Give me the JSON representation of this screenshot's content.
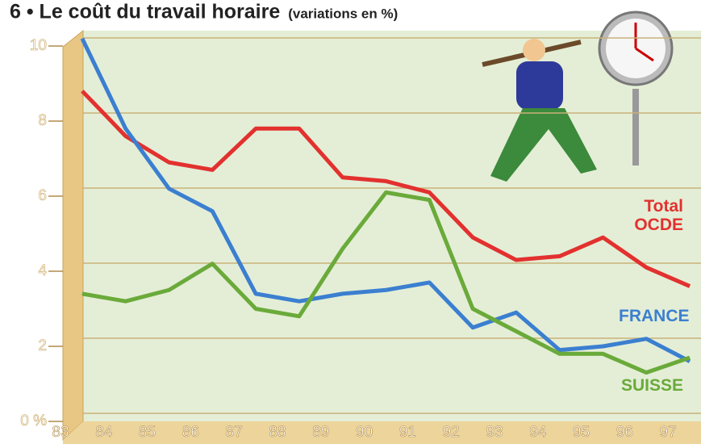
{
  "chart_data": {
    "type": "line",
    "title": "6 • Le coût du travail horaire",
    "subtitle": "(variations en %)",
    "x": [
      83.5,
      84.5,
      85.5,
      86.5,
      87.5,
      88.5,
      89.5,
      90.5,
      91.5,
      92.5,
      93.5,
      94.5,
      95.5,
      96.5,
      97.5
    ],
    "series": [
      {
        "name": "Total OCDE",
        "color": "#e2312f",
        "values": [
          8.8,
          7.6,
          6.9,
          6.7,
          7.8,
          7.8,
          6.5,
          6.4,
          6.1,
          4.9,
          4.3,
          4.4,
          4.9,
          4.1,
          3.6
        ]
      },
      {
        "name": "FRANCE",
        "color": "#3b7fd0",
        "values": [
          10.2,
          7.8,
          6.2,
          5.6,
          3.4,
          3.2,
          3.4,
          3.5,
          3.7,
          2.5,
          2.9,
          1.9,
          2.0,
          2.2,
          1.6
        ]
      },
      {
        "name": "SUISSE",
        "color": "#6aaa3a",
        "values": [
          3.4,
          3.2,
          3.5,
          4.2,
          3.0,
          2.8,
          4.6,
          6.1,
          5.9,
          3.0,
          2.4,
          1.8,
          1.8,
          1.3,
          1.7
        ]
      }
    ],
    "xlim": [
      82.8,
      97.75
    ],
    "xticks": [
      83,
      84,
      85,
      86,
      87,
      88,
      89,
      90,
      91,
      92,
      93,
      94,
      95,
      96,
      97
    ],
    "ylim": [
      0,
      10
    ],
    "yticks": [
      {
        "value": 0,
        "label": "0 %"
      },
      2,
      4,
      6,
      8,
      10
    ],
    "grid": true
  }
}
